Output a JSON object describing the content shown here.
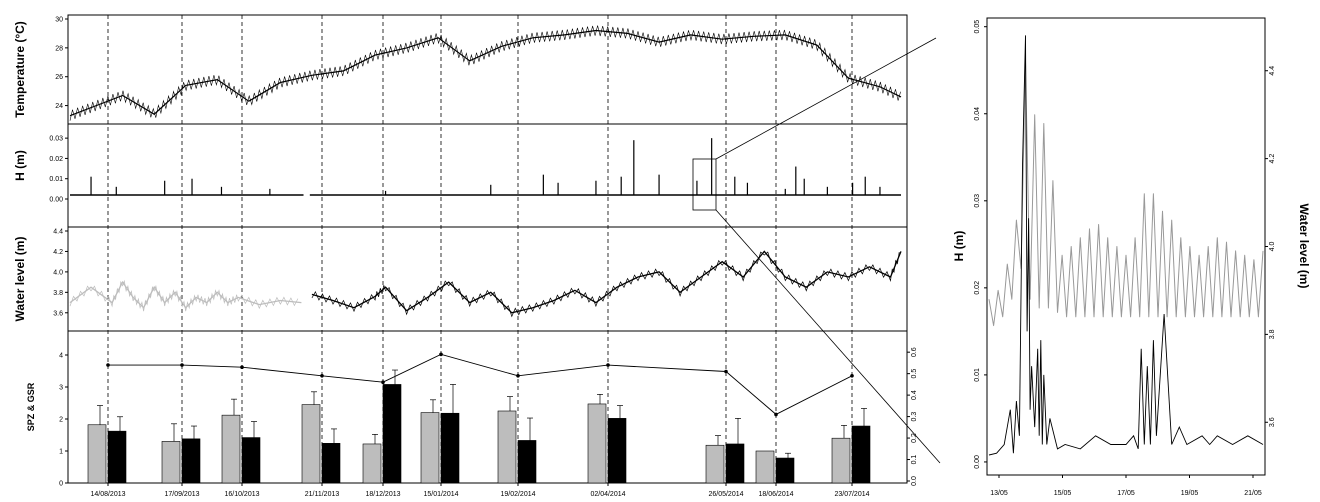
{
  "colors": {
    "foreground": "#000000",
    "gray_series": "#bdbdbd",
    "ratio_line": "#000000"
  },
  "chart_data": [
    {
      "type": "line",
      "panel": "temperature",
      "ylabel": "Temperature (°C)",
      "ylim": [
        23,
        30
      ],
      "yticks": [
        24,
        26,
        28,
        30
      ],
      "dates": [
        "14/08/2013",
        "17/09/2013",
        "16/10/2013",
        "21/11/2013",
        "18/12/2013",
        "15/01/2014",
        "19/02/2014",
        "02/04/2014",
        "26/05/2014",
        "18/06/2014",
        "23/07/2014"
      ],
      "x": [
        0,
        25,
        40,
        55,
        70,
        85,
        100,
        115,
        130,
        145,
        160,
        175,
        190,
        205,
        220,
        235,
        250,
        265,
        280,
        295,
        310,
        325,
        340,
        355,
        370,
        385,
        395
      ],
      "values": [
        23.3,
        24.7,
        23.4,
        25.4,
        25.8,
        24.3,
        25.6,
        26.1,
        26.4,
        27.5,
        28.0,
        28.7,
        27.1,
        28.1,
        28.7,
        28.9,
        29.2,
        29.0,
        28.4,
        28.9,
        28.6,
        28.8,
        28.9,
        28.2,
        25.9,
        25.3,
        24.6
      ]
    },
    {
      "type": "line",
      "panel": "H",
      "ylabel": "H (m)",
      "ylim": [
        0,
        0.035
      ],
      "yticks": [
        0.0,
        0.01,
        0.02,
        0.03
      ],
      "baseline": 0.002,
      "spikes": [
        {
          "x": 10,
          "y": 0.011
        },
        {
          "x": 22,
          "y": 0.006
        },
        {
          "x": 45,
          "y": 0.009
        },
        {
          "x": 58,
          "y": 0.01
        },
        {
          "x": 72,
          "y": 0.006
        },
        {
          "x": 95,
          "y": 0.005
        },
        {
          "x": 150,
          "y": 0.004
        },
        {
          "x": 200,
          "y": 0.007
        },
        {
          "x": 225,
          "y": 0.012
        },
        {
          "x": 232,
          "y": 0.008
        },
        {
          "x": 250,
          "y": 0.009
        },
        {
          "x": 262,
          "y": 0.011
        },
        {
          "x": 268,
          "y": 0.029
        },
        {
          "x": 280,
          "y": 0.012
        },
        {
          "x": 298,
          "y": 0.009
        },
        {
          "x": 305,
          "y": 0.03
        },
        {
          "x": 316,
          "y": 0.011
        },
        {
          "x": 322,
          "y": 0.008
        },
        {
          "x": 340,
          "y": 0.005
        },
        {
          "x": 345,
          "y": 0.016
        },
        {
          "x": 349,
          "y": 0.01
        },
        {
          "x": 360,
          "y": 0.006
        },
        {
          "x": 372,
          "y": 0.008
        },
        {
          "x": 378,
          "y": 0.011
        },
        {
          "x": 385,
          "y": 0.006
        }
      ]
    },
    {
      "type": "line",
      "panel": "water_level",
      "ylabel": "Water level (m)",
      "ylim": [
        3.5,
        4.4
      ],
      "yticks": [
        3.6,
        3.8,
        4.0,
        4.2,
        4.4
      ],
      "series": [
        {
          "x": [
            0,
            10,
            20,
            25,
            30,
            35,
            40,
            45,
            50,
            55,
            60,
            65,
            70,
            75,
            80,
            90,
            100,
            110
          ],
          "values": [
            3.7,
            3.85,
            3.7,
            3.9,
            3.75,
            3.65,
            3.85,
            3.7,
            3.8,
            3.65,
            3.75,
            3.7,
            3.8,
            3.7,
            3.75,
            3.68,
            3.72,
            3.7
          ]
        },
        {
          "x": [
            115,
            125,
            135,
            145,
            150,
            160,
            170,
            180,
            190,
            200,
            210,
            220,
            230,
            240,
            250,
            260,
            270,
            280,
            290,
            300,
            310,
            320,
            330,
            340,
            350,
            360,
            370,
            380,
            390,
            395
          ],
          "values": [
            3.78,
            3.72,
            3.65,
            3.76,
            3.85,
            3.62,
            3.75,
            3.9,
            3.7,
            3.8,
            3.6,
            3.65,
            3.72,
            3.82,
            3.7,
            3.85,
            3.95,
            4.0,
            3.8,
            3.95,
            4.1,
            3.95,
            4.2,
            3.95,
            3.85,
            4.0,
            3.95,
            4.05,
            3.95,
            4.2
          ]
        }
      ]
    },
    {
      "type": "bar",
      "panel": "SPZ_GSR",
      "ylabel": "SPZ & GSR",
      "ylim": [
        0,
        4.5
      ],
      "yticks": [
        0,
        1,
        2,
        3,
        4
      ],
      "y2ticks": [
        0.0,
        0.1,
        0.2,
        0.3,
        0.4,
        0.5,
        0.6
      ],
      "categories": [
        "14/08/2013",
        "17/09/2013",
        "16/10/2013",
        "21/11/2013",
        "18/12/2013",
        "15/01/2014",
        "19/02/2014",
        "02/04/2014",
        "26/05/2014",
        "18/06/2014",
        "23/07/2014"
      ],
      "series": [
        {
          "values": [
            1.82,
            1.3,
            2.12,
            2.45,
            1.22,
            2.2,
            2.25,
            2.47,
            1.18,
            1.0,
            1.4
          ],
          "errors": [
            0.6,
            0.55,
            0.5,
            0.4,
            0.3,
            0.4,
            0.45,
            0.3,
            0.3,
            0.0,
            0.4
          ],
          "color": "#bdbdbd"
        },
        {
          "values": [
            1.62,
            1.38,
            1.42,
            1.24,
            3.08,
            2.18,
            1.33,
            2.02,
            1.22,
            0.78,
            1.78
          ],
          "errors": [
            0.45,
            0.4,
            0.5,
            0.45,
            0.45,
            0.9,
            0.7,
            0.4,
            0.8,
            0.15,
            0.55
          ],
          "color": "#000000"
        }
      ],
      "ratio_values": [
        0.54,
        0.54,
        0.53,
        0.49,
        0.46,
        0.59,
        0.49,
        0.54,
        0.51,
        0.31,
        0.49
      ]
    },
    {
      "type": "line",
      "panel": "zoom",
      "ylabel": "H (m)",
      "y2label": "Water level (m)",
      "ylim": [
        -0.0015,
        0.051
      ],
      "yticks": [
        0.0,
        0.01,
        0.02,
        0.03,
        0.04,
        0.05
      ],
      "y2lim": [
        3.48,
        4.52
      ],
      "y2ticks": [
        3.6,
        3.8,
        4.0,
        4.2,
        4.4
      ],
      "xticks": [
        "13/05",
        "15/05",
        "17/05",
        "19/05",
        "21/05"
      ],
      "series": [
        {
          "name_hidden": true,
          "color": "#999999",
          "x": [
            0,
            3,
            6,
            9,
            12,
            15,
            18,
            21,
            24,
            27,
            30,
            33,
            36,
            39,
            42,
            45,
            48,
            51,
            54,
            57,
            60,
            63,
            66,
            69,
            72,
            75,
            78,
            81,
            84,
            87,
            90,
            93,
            96,
            99,
            102,
            105,
            108,
            111,
            114,
            117,
            120,
            123,
            126,
            129,
            132,
            135,
            138,
            141,
            144,
            147,
            150,
            153,
            156,
            159,
            162,
            165,
            168,
            171,
            174,
            177,
            180
          ],
          "values": [
            3.88,
            3.82,
            3.9,
            3.84,
            3.96,
            3.88,
            4.06,
            3.95,
            4.42,
            3.88,
            4.3,
            3.86,
            4.28,
            3.86,
            4.15,
            3.85,
            3.98,
            3.84,
            4.0,
            3.84,
            4.02,
            3.84,
            4.04,
            3.84,
            4.05,
            3.84,
            4.02,
            3.84,
            4.0,
            3.84,
            3.98,
            3.84,
            4.02,
            3.84,
            4.12,
            3.84,
            4.12,
            3.84,
            4.08,
            3.84,
            4.06,
            3.84,
            4.02,
            3.84,
            4.0,
            3.84,
            3.98,
            3.84,
            4.0,
            3.84,
            4.02,
            3.84,
            4.01,
            3.84,
            3.99,
            3.84,
            3.98,
            3.84,
            3.97,
            3.84,
            3.99
          ]
        },
        {
          "name_hidden": true,
          "color": "#000000",
          "x": [
            0,
            5,
            10,
            14,
            16,
            18,
            20,
            22,
            24,
            25,
            26,
            27,
            28,
            30,
            32,
            33,
            34,
            35,
            36,
            38,
            40,
            45,
            50,
            60,
            70,
            80,
            90,
            95,
            98,
            100,
            102,
            104,
            106,
            108,
            110,
            115,
            120,
            125,
            130,
            140,
            145,
            150,
            160,
            170,
            180
          ],
          "values": [
            0.0008,
            0.001,
            0.002,
            0.006,
            0.001,
            0.007,
            0.003,
            0.034,
            0.049,
            0.015,
            0.028,
            0.006,
            0.011,
            0.004,
            0.013,
            0.003,
            0.014,
            0.002,
            0.01,
            0.002,
            0.005,
            0.0015,
            0.002,
            0.0015,
            0.003,
            0.002,
            0.002,
            0.003,
            0.0015,
            0.013,
            0.002,
            0.011,
            0.002,
            0.014,
            0.003,
            0.017,
            0.002,
            0.004,
            0.002,
            0.003,
            0.002,
            0.003,
            0.002,
            0.003,
            0.002
          ]
        }
      ]
    }
  ]
}
